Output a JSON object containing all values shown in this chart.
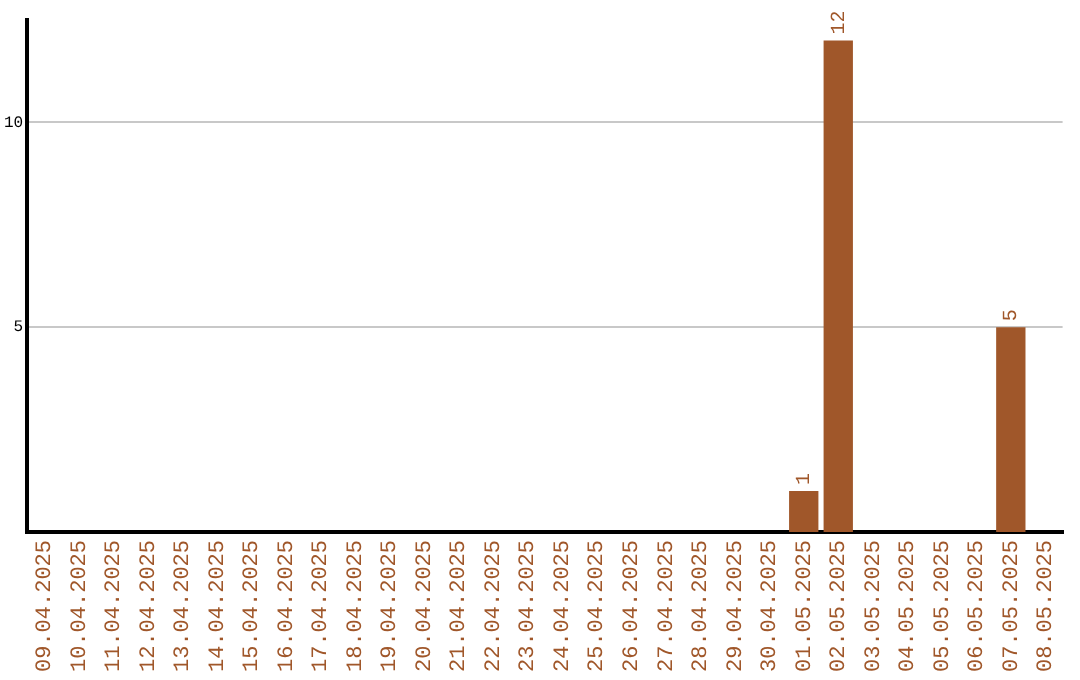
{
  "chart_data": {
    "type": "bar",
    "categories": [
      "09.04.2025",
      "10.04.2025",
      "11.04.2025",
      "12.04.2025",
      "13.04.2025",
      "14.04.2025",
      "15.04.2025",
      "16.04.2025",
      "17.04.2025",
      "18.04.2025",
      "19.04.2025",
      "20.04.2025",
      "21.04.2025",
      "22.04.2025",
      "23.04.2025",
      "24.04.2025",
      "25.04.2025",
      "26.04.2025",
      "27.04.2025",
      "28.04.2025",
      "29.04.2025",
      "30.04.2025",
      "01.05.2025",
      "02.05.2025",
      "03.05.2025",
      "04.05.2025",
      "05.05.2025",
      "06.05.2025",
      "07.05.2025",
      "08.05.2025"
    ],
    "values": [
      0,
      0,
      0,
      0,
      0,
      0,
      0,
      0,
      0,
      0,
      0,
      0,
      0,
      0,
      0,
      0,
      0,
      0,
      0,
      0,
      0,
      0,
      1,
      12,
      0,
      0,
      0,
      0,
      5,
      0
    ],
    "value_labels": [
      null,
      null,
      null,
      null,
      null,
      null,
      null,
      null,
      null,
      null,
      null,
      null,
      null,
      null,
      null,
      null,
      null,
      null,
      null,
      null,
      null,
      null,
      "1",
      "12",
      null,
      null,
      null,
      null,
      "5",
      null
    ],
    "color": "#a0572a",
    "ylim": [
      0,
      12.5
    ],
    "yticks": [
      5,
      10
    ],
    "grid": "y",
    "legend": false
  }
}
